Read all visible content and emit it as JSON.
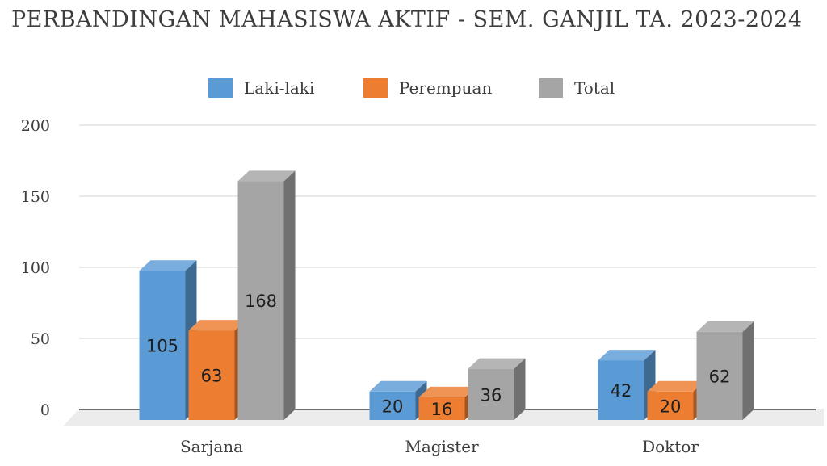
{
  "chart_data": {
    "type": "bar",
    "title": "PERBANDINGAN MAHASISWA AKTIF - SEM. GANJIL TA. 2023-2024",
    "categories": [
      "Sarjana",
      "Magister",
      "Doktor"
    ],
    "series": [
      {
        "name": "Laki-laki",
        "values": [
          105,
          20,
          42
        ],
        "color": "#5b9bd5"
      },
      {
        "name": "Perempuan",
        "values": [
          63,
          16,
          20
        ],
        "color": "#ed7d31"
      },
      {
        "name": "Total",
        "values": [
          168,
          36,
          62
        ],
        "color": "#a5a5a5"
      }
    ],
    "ylim": [
      0,
      200
    ],
    "yticks": [
      0,
      50,
      100,
      150,
      200
    ],
    "grid": true,
    "legend": "top-center",
    "style": "3d-column"
  }
}
